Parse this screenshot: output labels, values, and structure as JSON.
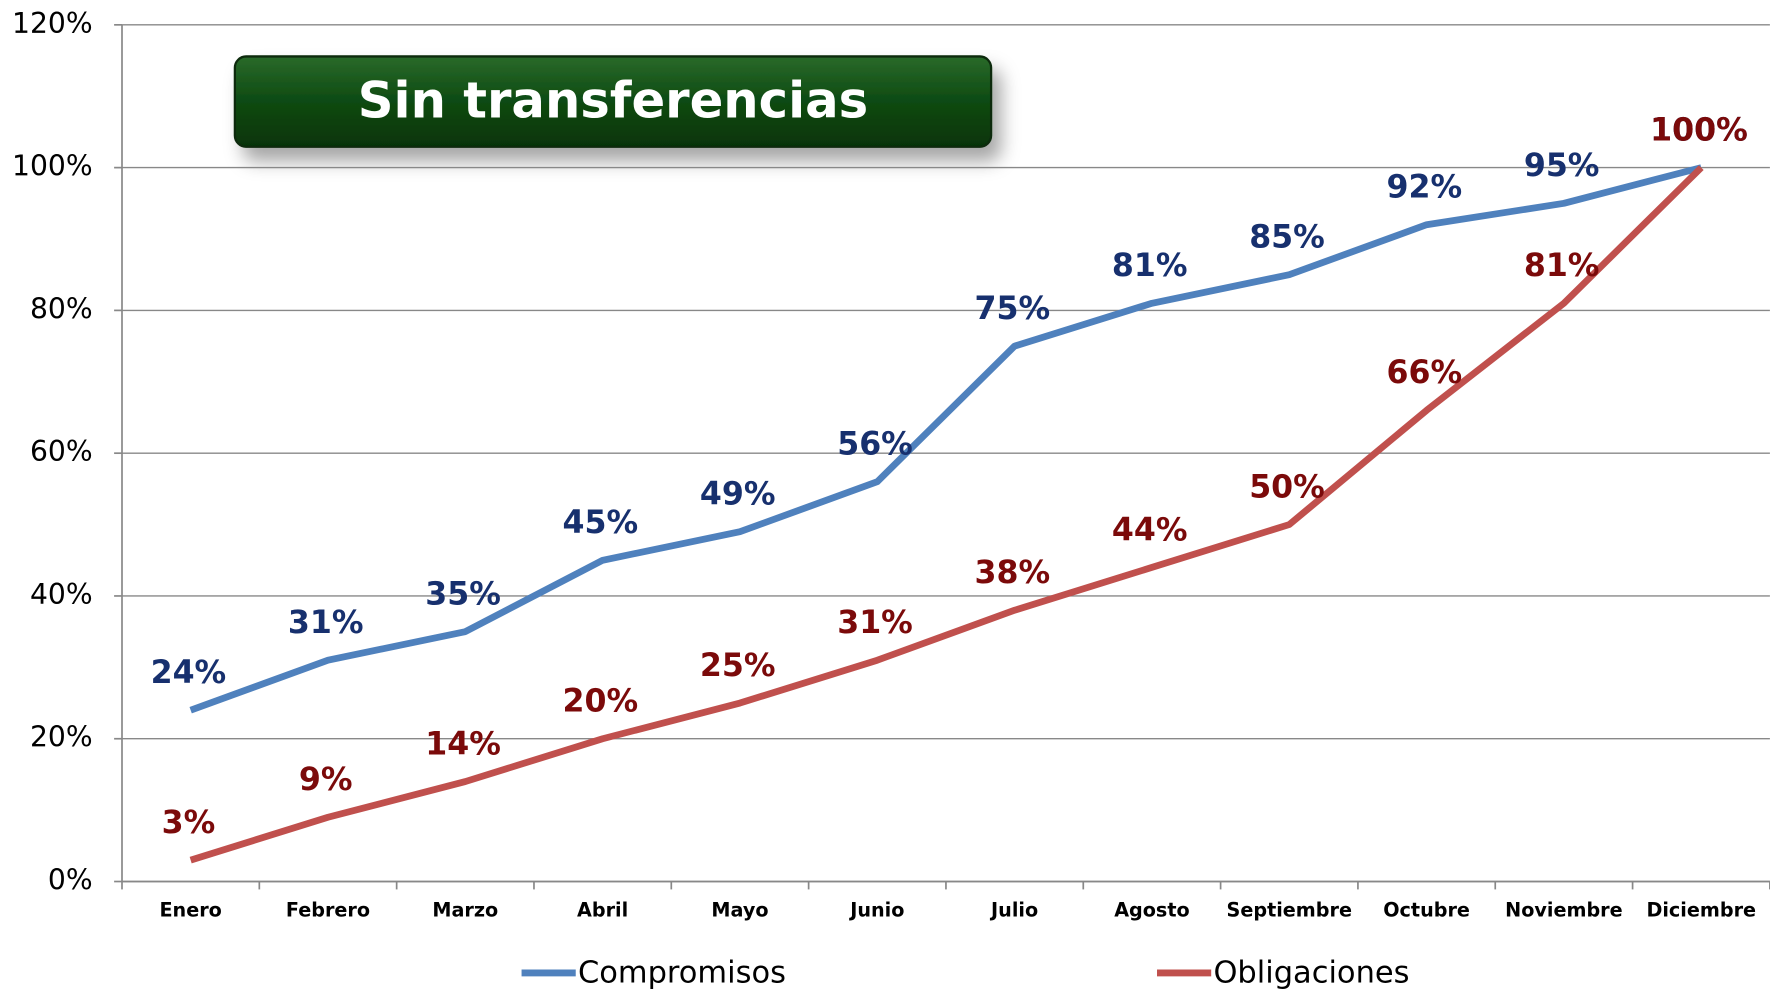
{
  "chart_data": {
    "type": "line",
    "title": "Sin transferencias",
    "categories": [
      "Enero",
      "Febrero",
      "Marzo",
      "Abril",
      "Mayo",
      "Junio",
      "Julio",
      "Agosto",
      "Septiembre",
      "Octubre",
      "Noviembre",
      "Diciembre"
    ],
    "series": [
      {
        "name": "Compromisos",
        "color": "#4f81bd",
        "label_color": "#17306e",
        "values": [
          24,
          31,
          35,
          45,
          49,
          56,
          75,
          81,
          85,
          92,
          95,
          100
        ],
        "value_labels": [
          "24%",
          "31%",
          "35%",
          "45%",
          "49%",
          "56%",
          "75%",
          "81%",
          "85%",
          "92%",
          "95%",
          "100%"
        ]
      },
      {
        "name": "Obligaciones",
        "color": "#c0504d",
        "label_color": "#7b0a0a",
        "values": [
          3,
          9,
          14,
          20,
          25,
          31,
          38,
          44,
          50,
          66,
          81,
          100
        ],
        "value_labels": [
          "3%",
          "9%",
          "14%",
          "20%",
          "25%",
          "31%",
          "38%",
          "44%",
          "50%",
          "66%",
          "81%",
          "100%"
        ]
      }
    ],
    "ylim": [
      0,
      120
    ],
    "yticks": [
      {
        "value": 0,
        "label": "0%"
      },
      {
        "value": 20,
        "label": "20%"
      },
      {
        "value": 40,
        "label": "40%"
      },
      {
        "value": 60,
        "label": "60%"
      },
      {
        "value": 80,
        "label": "80%"
      },
      {
        "value": 100,
        "label": "100%"
      },
      {
        "value": 120,
        "label": "120%"
      }
    ],
    "grid": true,
    "legend": "bottom"
  }
}
